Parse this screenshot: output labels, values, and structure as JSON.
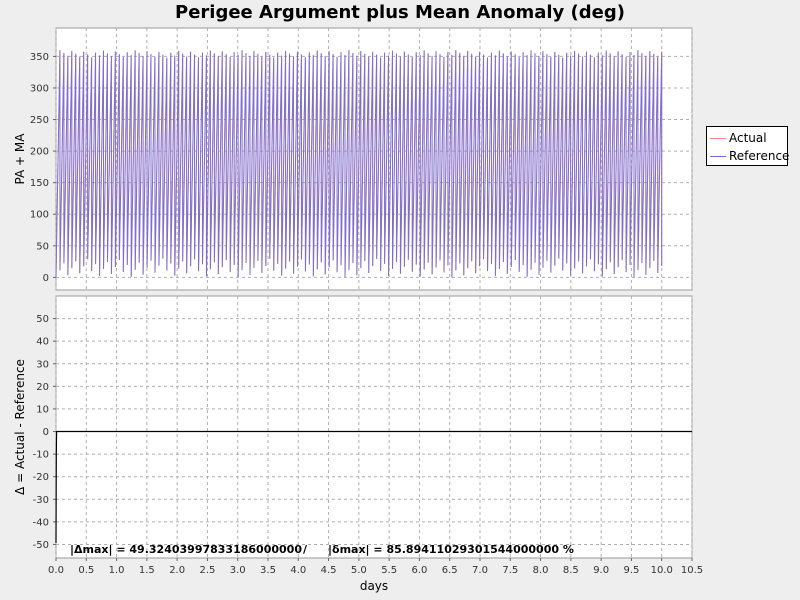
{
  "chart_data": {
    "type": "line",
    "title": "Perigee Argument plus Mean Anomaly (deg)",
    "xlabel": "days",
    "xlim": [
      0,
      10.5
    ],
    "x_ticks": [
      "0.0",
      "0.5",
      "1.0",
      "1.5",
      "2.0",
      "2.5",
      "3.0",
      "3.5",
      "4.0",
      "4.5",
      "5.0",
      "5.5",
      "6.0",
      "6.5",
      "7.0",
      "7.5",
      "8.0",
      "8.5",
      "9.0",
      "9.5",
      "10.0",
      "10.5"
    ],
    "grid": true,
    "legend_position": "right",
    "colors": {
      "actual": "#ff8080",
      "reference": "#6b6bd6",
      "delta": "#000000"
    },
    "top_panel": {
      "ylabel": "PA + MA",
      "ylim": [
        -20,
        395
      ],
      "y_ticks": [
        "0",
        "50",
        "100",
        "150",
        "200",
        "250",
        "300",
        "350"
      ],
      "series": [
        {
          "name": "Actual",
          "color": "#ff8080",
          "description_values": {
            "x_start": 0.0,
            "x_end": 10.0,
            "period_days": 0.0652,
            "min_deg": 0,
            "max_deg": 360
          }
        },
        {
          "name": "Reference",
          "color": "#6b6bd6",
          "description_values": {
            "x_start": 0.0,
            "x_end": 10.0,
            "period_days": 0.0652,
            "min_deg": 0,
            "max_deg": 360
          }
        }
      ]
    },
    "bottom_panel": {
      "ylabel": "Δ = Actual - Reference",
      "ylim": [
        -56,
        60
      ],
      "y_ticks": [
        "50",
        "40",
        "30",
        "20",
        "10",
        "0",
        "-10",
        "-20",
        "-30",
        "-40",
        "-50"
      ],
      "series": [
        {
          "name": "Δ",
          "color": "#000000",
          "points": [
            [
              0.0,
              -49.3
            ],
            [
              0.005,
              -10
            ],
            [
              0.01,
              0.0
            ],
            [
              10.5,
              0.0
            ]
          ]
        }
      ]
    },
    "stats": {
      "delta_max": "|Δmax| = 49.32403997833186000000",
      "separator": "/",
      "delta_pct": "|δmax| = 85.89411029301544000000 %"
    }
  }
}
